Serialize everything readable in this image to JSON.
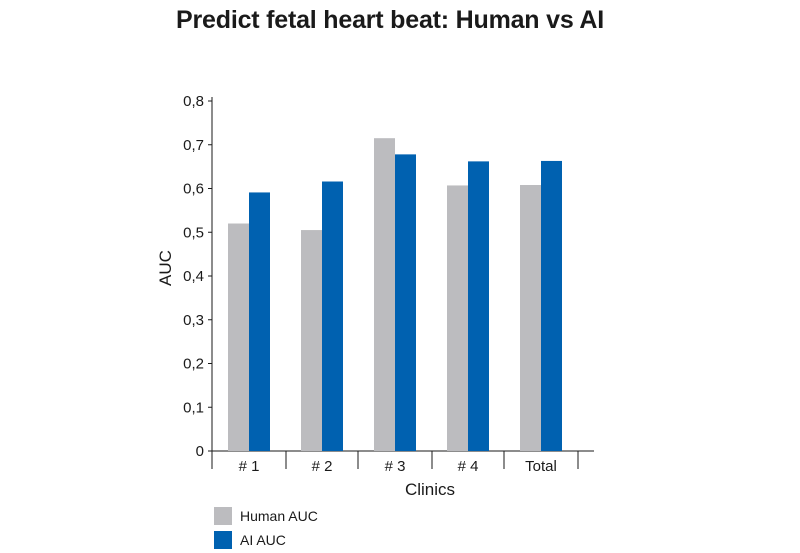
{
  "chart_data": {
    "type": "bar",
    "title": "Predict fetal heart beat: Human vs AI",
    "xlabel": "Clinics",
    "ylabel": "AUC",
    "categories": [
      "# 1",
      "# 2",
      "# 3",
      "# 4",
      "Total"
    ],
    "ylim": [
      0,
      0.8
    ],
    "yticks": [
      "0",
      "0,1",
      "0,2",
      "0,3",
      "0,4",
      "0,5",
      "0,6",
      "0,7",
      "0,8"
    ],
    "series": [
      {
        "name": "Human AUC",
        "color": "#bcbcbf",
        "values": [
          0.52,
          0.505,
          0.715,
          0.607,
          0.608
        ]
      },
      {
        "name": "AI AUC",
        "color": "#0061b0",
        "values": [
          0.591,
          0.616,
          0.678,
          0.662,
          0.663
        ]
      }
    ],
    "legend_position": "bottom-left",
    "grid": false
  }
}
